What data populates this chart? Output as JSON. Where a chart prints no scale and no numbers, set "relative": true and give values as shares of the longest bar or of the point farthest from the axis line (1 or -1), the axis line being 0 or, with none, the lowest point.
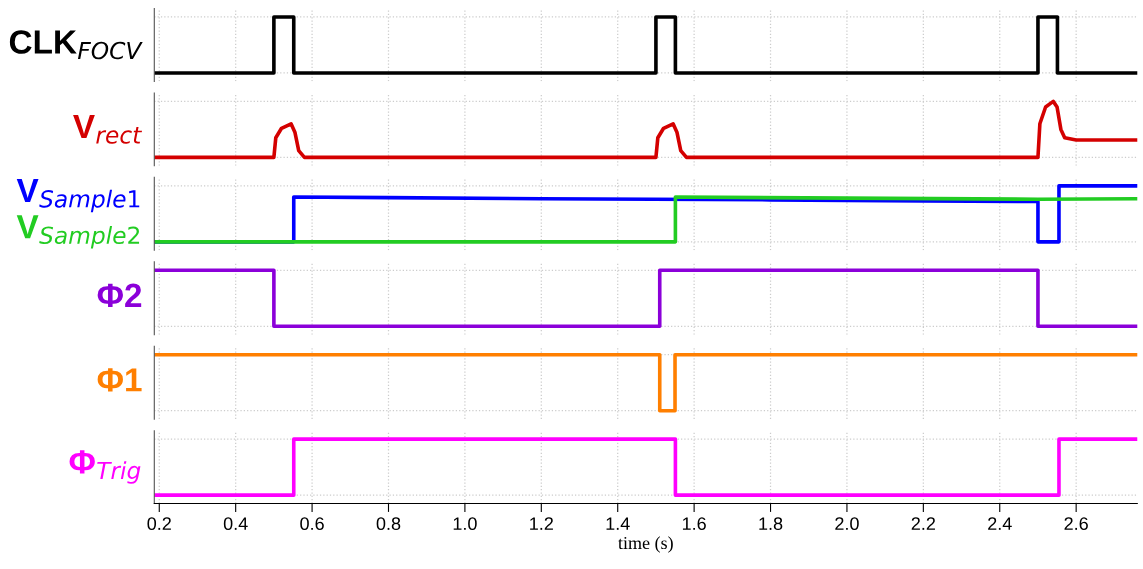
{
  "chart_data": [
    {
      "type": "line",
      "relative": true,
      "xlim": [
        0.187,
        2.76
      ],
      "grid": true,
      "tick_labels": false,
      "series": [
        {
          "name": "CLK$_{FOCV}$",
          "color": "#000000",
          "x": [
            0.187,
            0.5,
            0.5,
            0.552,
            0.552,
            1.5,
            1.5,
            1.551,
            1.551,
            2.5,
            2.5,
            2.551,
            2.551,
            2.76
          ],
          "values": [
            0,
            0,
            1,
            1,
            0,
            0,
            1,
            1,
            0,
            0,
            1,
            1,
            0,
            0
          ]
        }
      ]
    },
    {
      "type": "line",
      "relative": true,
      "xlim": [
        0.187,
        2.76
      ],
      "grid": true,
      "tick_labels": false,
      "series": [
        {
          "name": "V$_{rect}$",
          "color": "#d40000",
          "x": [
            0.187,
            0.5,
            0.505,
            0.52,
            0.545,
            0.555,
            0.565,
            0.58,
            1.5,
            1.505,
            1.52,
            1.545,
            1.555,
            1.565,
            1.58,
            2.5,
            2.505,
            2.52,
            2.54,
            2.55,
            2.56,
            2.57,
            2.6,
            2.76
          ],
          "values": [
            0,
            0,
            0.35,
            0.52,
            0.6,
            0.45,
            0.12,
            0,
            0,
            0.35,
            0.52,
            0.6,
            0.45,
            0.12,
            0,
            0,
            0.6,
            0.9,
            1,
            0.9,
            0.5,
            0.35,
            0.31,
            0.31
          ]
        }
      ]
    },
    {
      "type": "line",
      "relative": true,
      "xlim": [
        0.187,
        2.76
      ],
      "grid": true,
      "tick_labels": false,
      "series": [
        {
          "name": "V$_{Sample1}$",
          "color": "#0000ff",
          "x": [
            0.187,
            0.552,
            0.552,
            0.8,
            1.2,
            1.8,
            2.2,
            2.5,
            2.5,
            2.555,
            2.555,
            2.76
          ],
          "values": [
            0,
            0,
            0.8,
            0.79,
            0.77,
            0.75,
            0.73,
            0.72,
            0,
            0,
            1,
            1
          ]
        },
        {
          "name": "V$_{Sample2}$",
          "color": "#22cc22",
          "x": [
            0.187,
            1.551,
            1.551,
            2.0,
            2.5,
            2.76
          ],
          "values": [
            0,
            0,
            0.8,
            0.78,
            0.76,
            0.77
          ]
        }
      ]
    },
    {
      "type": "line",
      "relative": true,
      "xlim": [
        0.187,
        2.76
      ],
      "grid": true,
      "tick_labels": false,
      "series": [
        {
          "name": "Φ2",
          "color": "#8b00d9",
          "x": [
            0.187,
            0.5,
            0.5,
            1.51,
            1.51,
            2.5,
            2.5,
            2.76
          ],
          "values": [
            1,
            1,
            0,
            0,
            1,
            1,
            0,
            0
          ]
        }
      ]
    },
    {
      "type": "line",
      "relative": true,
      "xlim": [
        0.187,
        2.76
      ],
      "grid": true,
      "tick_labels": false,
      "series": [
        {
          "name": "Φ1",
          "color": "#ff7f00",
          "x": [
            0.187,
            1.51,
            1.51,
            1.55,
            1.55,
            2.76
          ],
          "values": [
            1,
            1,
            0,
            0,
            1,
            1
          ]
        }
      ]
    },
    {
      "type": "line",
      "relative": true,
      "xlim": [
        0.187,
        2.76
      ],
      "grid": true,
      "tick_labels": "x",
      "xlabel": "time (s)",
      "xticks": [
        {
          "value": 0.2,
          "label": "0.2"
        },
        {
          "value": 0.4,
          "label": "0.4"
        },
        {
          "value": 0.6,
          "label": "0.6"
        },
        {
          "value": 0.8,
          "label": "0.8"
        },
        {
          "value": 1.0,
          "label": "1.0"
        },
        {
          "value": 1.2,
          "label": "1.2"
        },
        {
          "value": 1.4,
          "label": "1.4"
        },
        {
          "value": 1.6,
          "label": "1.6"
        },
        {
          "value": 1.8,
          "label": "1.8"
        },
        {
          "value": 2.0,
          "label": "2.0"
        },
        {
          "value": 2.2,
          "label": "2.2"
        },
        {
          "value": 2.4,
          "label": "2.4"
        },
        {
          "value": 2.6,
          "label": "2.6"
        }
      ],
      "series": [
        {
          "name": "Φ$_{Trig}$",
          "color": "#ff00ff",
          "x": [
            0.187,
            0.552,
            0.552,
            1.551,
            1.551,
            2.555,
            2.555,
            2.76
          ],
          "values": [
            0,
            0,
            1,
            1,
            0,
            0,
            1,
            1
          ]
        }
      ]
    }
  ]
}
